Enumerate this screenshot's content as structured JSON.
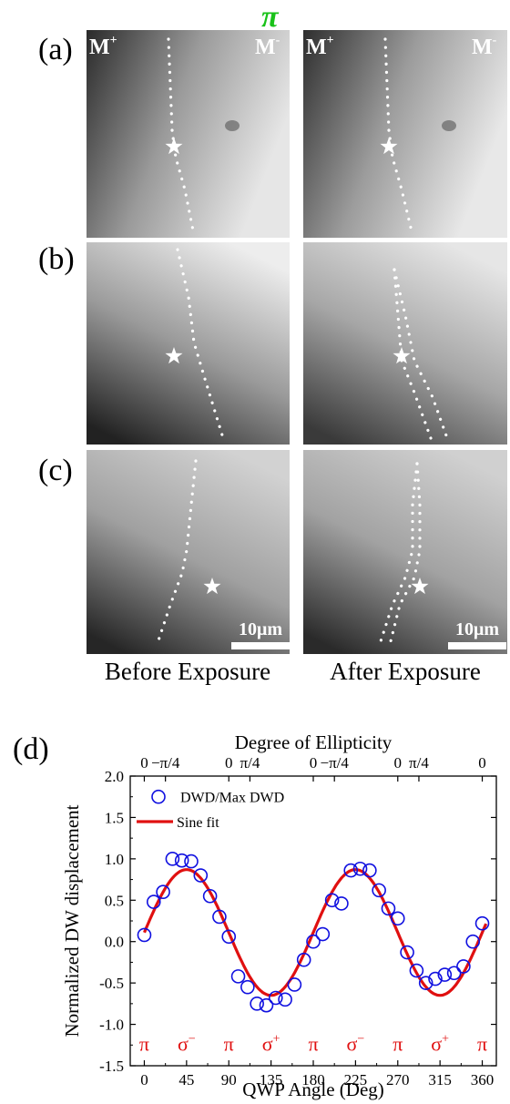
{
  "top_symbol": "π",
  "panels": [
    {
      "letter": "(a)",
      "left_label": "M",
      "left_sup": "+",
      "right_label": "M",
      "right_sup": "-"
    },
    {
      "letter": "(b)"
    },
    {
      "letter": "(c)",
      "scale_label": "10μm"
    }
  ],
  "captions": {
    "before": "Before Exposure",
    "after": "After Exposure"
  },
  "chart_panel_letter": "(d)",
  "chart_data": {
    "type": "scatter",
    "top_axis_title": "Degree of Ellipticity",
    "top_ticks": [
      {
        "x": 0,
        "label": "0"
      },
      {
        "x": 22.5,
        "label": "−π/4"
      },
      {
        "x": 90,
        "label": "0"
      },
      {
        "x": 112.5,
        "label": "π/4"
      },
      {
        "x": 180,
        "label": "0"
      },
      {
        "x": 202.5,
        "label": "−π/4"
      },
      {
        "x": 270,
        "label": "0"
      },
      {
        "x": 292.5,
        "label": "π/4"
      },
      {
        "x": 360,
        "label": "0"
      }
    ],
    "xlabel": "QWP Angle (Deg)",
    "ylabel": "Normalized DW displacement",
    "xlim": [
      -15,
      375
    ],
    "ylim": [
      -1.5,
      2.0
    ],
    "xticks": [
      0,
      45,
      90,
      135,
      180,
      225,
      270,
      315,
      360
    ],
    "xtick_labels": [
      "0",
      "45",
      "90",
      "135",
      "180",
      "225",
      "270",
      "315",
      "360"
    ],
    "yticks": [
      -1.5,
      -1.0,
      -0.5,
      0.0,
      0.5,
      1.0,
      1.5,
      2.0
    ],
    "ytick_labels": [
      "-1.5",
      "-1.0",
      "-0.5",
      "0.0",
      "0.5",
      "1.0",
      "1.5",
      "2.0"
    ],
    "polarization_labels": [
      {
        "x": 0,
        "base": "π",
        "sup": ""
      },
      {
        "x": 45,
        "base": "σ",
        "sup": "−"
      },
      {
        "x": 90,
        "base": "π",
        "sup": ""
      },
      {
        "x": 135,
        "base": "σ",
        "sup": "+"
      },
      {
        "x": 180,
        "base": "π",
        "sup": ""
      },
      {
        "x": 225,
        "base": "σ",
        "sup": "−"
      },
      {
        "x": 270,
        "base": "π",
        "sup": ""
      },
      {
        "x": 315,
        "base": "σ",
        "sup": "+"
      },
      {
        "x": 360,
        "base": "π",
        "sup": ""
      }
    ],
    "series": [
      {
        "name": "DWD/Max DWD",
        "color": "#1010e0",
        "marker": "open-circle",
        "x": [
          0,
          10,
          20,
          30,
          40,
          50,
          60,
          70,
          80,
          90,
          100,
          110,
          120,
          130,
          140,
          150,
          160,
          170,
          180,
          190,
          200,
          210,
          220,
          230,
          240,
          250,
          260,
          270,
          280,
          290,
          300,
          310,
          320,
          330,
          340,
          350,
          360
        ],
        "y": [
          0.08,
          0.48,
          0.6,
          1.0,
          0.98,
          0.97,
          0.8,
          0.55,
          0.3,
          0.06,
          -0.42,
          -0.55,
          -0.75,
          -0.77,
          -0.68,
          -0.7,
          -0.52,
          -0.22,
          0.0,
          0.09,
          0.5,
          0.46,
          0.86,
          0.88,
          0.86,
          0.62,
          0.4,
          0.28,
          -0.13,
          -0.35,
          -0.5,
          -0.45,
          -0.4,
          -0.38,
          -0.3,
          0.0,
          0.22
        ]
      },
      {
        "name": "Sine fit",
        "color": "#e01010",
        "marker": "line",
        "amplitude": 0.76,
        "offset": 0.11,
        "period": 180,
        "phase_deg": 0
      }
    ]
  }
}
